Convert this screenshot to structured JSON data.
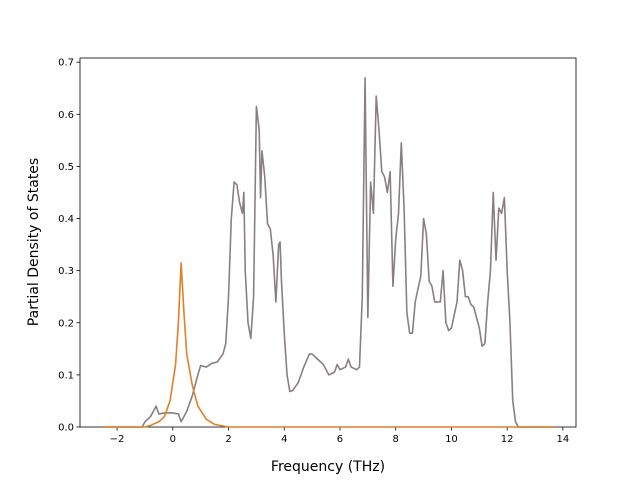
{
  "chart_data": {
    "type": "line",
    "xlabel": "Frequency (THz)",
    "ylabel": "Partial Density of States",
    "xlim": [
      -3.33,
      14.47
    ],
    "ylim": [
      0,
      0.708
    ],
    "xticks": [
      {
        "value": -2,
        "label": "−2"
      },
      0,
      2,
      4,
      6,
      8,
      10,
      12,
      14
    ],
    "yticks": [
      {
        "value": 0,
        "label": "0.0"
      },
      0.1,
      0.2,
      0.3,
      0.4,
      0.5,
      0.6,
      0.7
    ],
    "series": [
      {
        "color": "#8a7f80",
        "x": [
          -2.5,
          -1.1,
          -1.0,
          -0.8,
          -0.6,
          -0.5,
          -0.3,
          0,
          0.2,
          0.3,
          0.5,
          0.7,
          0.9,
          1.0,
          1.2,
          1.4,
          1.6,
          1.8,
          1.9,
          2.0,
          2.1,
          2.2,
          2.3,
          2.4,
          2.5,
          2.55,
          2.6,
          2.7,
          2.8,
          2.9,
          3.0,
          3.1,
          3.15,
          3.2,
          3.3,
          3.4,
          3.5,
          3.6,
          3.7,
          3.8,
          3.85,
          3.9,
          4.0,
          4.1,
          4.2,
          4.3,
          4.5,
          4.7,
          4.9,
          5.0,
          5.2,
          5.4,
          5.6,
          5.8,
          5.9,
          6.0,
          6.2,
          6.3,
          6.4,
          6.6,
          6.7,
          6.8,
          6.9,
          7.0,
          7.1,
          7.2,
          7.3,
          7.4,
          7.5,
          7.6,
          7.7,
          7.8,
          7.9,
          8.0,
          8.1,
          8.2,
          8.3,
          8.4,
          8.5,
          8.6,
          8.7,
          8.9,
          9.0,
          9.1,
          9.2,
          9.3,
          9.4,
          9.6,
          9.7,
          9.8,
          9.9,
          10.0,
          10.2,
          10.3,
          10.4,
          10.5,
          10.6,
          10.7,
          10.8,
          11.0,
          11.1,
          11.2,
          11.3,
          11.4,
          11.5,
          11.6,
          11.7,
          11.8,
          11.9,
          12.0,
          12.1,
          12.2,
          12.3,
          12.4,
          13.7
        ],
        "values": [
          0,
          0,
          0.01,
          0.02,
          0.04,
          0.025,
          0.027,
          0.027,
          0.025,
          0.01,
          0.03,
          0.06,
          0.1,
          0.118,
          0.115,
          0.122,
          0.125,
          0.14,
          0.16,
          0.25,
          0.4,
          0.47,
          0.465,
          0.43,
          0.41,
          0.45,
          0.3,
          0.2,
          0.17,
          0.25,
          0.615,
          0.57,
          0.44,
          0.53,
          0.48,
          0.39,
          0.38,
          0.33,
          0.24,
          0.35,
          0.355,
          0.28,
          0.18,
          0.1,
          0.068,
          0.07,
          0.085,
          0.115,
          0.14,
          0.14,
          0.13,
          0.12,
          0.1,
          0.105,
          0.12,
          0.11,
          0.115,
          0.13,
          0.115,
          0.11,
          0.115,
          0.25,
          0.67,
          0.21,
          0.47,
          0.41,
          0.635,
          0.57,
          0.49,
          0.48,
          0.45,
          0.49,
          0.27,
          0.36,
          0.41,
          0.545,
          0.42,
          0.22,
          0.18,
          0.18,
          0.24,
          0.29,
          0.4,
          0.37,
          0.28,
          0.27,
          0.24,
          0.24,
          0.3,
          0.2,
          0.185,
          0.19,
          0.24,
          0.32,
          0.3,
          0.25,
          0.25,
          0.235,
          0.23,
          0.19,
          0.155,
          0.16,
          0.24,
          0.3,
          0.45,
          0.32,
          0.42,
          0.41,
          0.44,
          0.3,
          0.2,
          0.05,
          0.01,
          0,
          0
        ]
      },
      {
        "color": "#e0812a",
        "x": [
          -2.5,
          -1,
          -0.8,
          -0.5,
          -0.3,
          -0.1,
          0.1,
          0.2,
          0.3,
          0.4,
          0.5,
          0.7,
          0.9,
          1.2,
          1.5,
          2,
          13.7
        ],
        "values": [
          0,
          0,
          0.003,
          0.01,
          0.02,
          0.05,
          0.12,
          0.2,
          0.315,
          0.22,
          0.14,
          0.08,
          0.04,
          0.015,
          0.005,
          0,
          0
        ]
      }
    ]
  }
}
